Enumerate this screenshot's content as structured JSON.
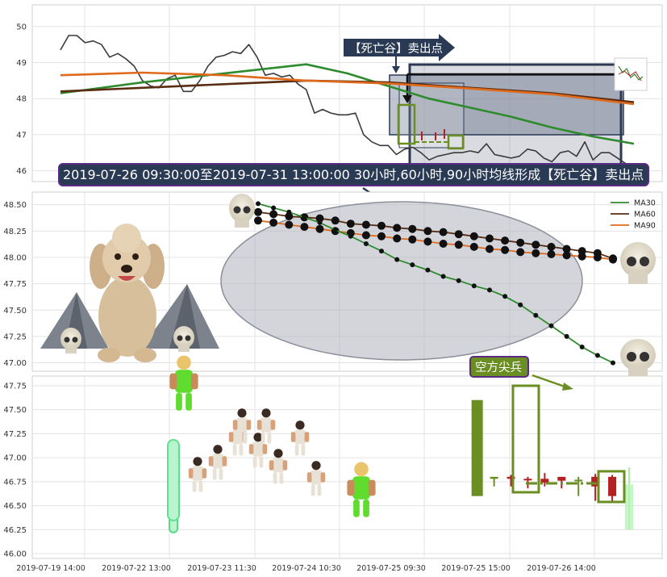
{
  "colors": {
    "price": "#3a3a3a",
    "ma30": "#2e8b2e",
    "ma60": "#5a2d12",
    "ma90": "#e06a1c",
    "candle_up": "#6b8e23",
    "candle_down": "#b22222",
    "callout_bg": "#2a3a55",
    "callout_border": "#5b2a86",
    "shade": "#8b93a5",
    "ellipse": "#b0b4bd"
  },
  "top_annotation": "【死亡谷】卖出点",
  "banner_text": "2019-07-26 09:30:00至2019-07-31 13:00:00 30小时,60小时,90小时均线形成【死亡谷】卖出点",
  "bottom_annotation": "空方尖兵",
  "legend": [
    {
      "key": "ma30",
      "label": "MA30"
    },
    {
      "key": "ma60",
      "label": "MA60"
    },
    {
      "key": "ma90",
      "label": "MA90"
    }
  ],
  "chart_data": [
    {
      "type": "line",
      "panel": "top",
      "ylim": [
        45.7,
        50.6
      ],
      "yticks": [
        "50",
        "49",
        "48",
        "47",
        "46"
      ],
      "ytick_values": [
        50,
        49,
        48,
        47,
        46
      ],
      "grid": true,
      "series": [
        {
          "key": "price",
          "x": [
            0,
            1,
            2,
            3,
            4,
            5,
            6,
            7,
            8,
            9,
            10,
            11,
            12,
            13,
            14,
            15,
            16,
            17,
            18,
            19,
            20,
            21,
            22,
            23,
            24,
            25,
            26,
            27,
            28,
            29,
            30,
            31,
            32,
            33,
            34,
            35,
            36,
            37,
            38,
            39,
            40,
            41,
            42,
            43,
            44,
            45,
            46,
            47,
            48,
            49,
            50,
            51,
            52,
            53,
            54,
            55,
            56,
            57,
            58,
            59,
            60,
            61,
            62,
            63,
            64,
            65,
            66,
            67,
            68,
            69,
            70
          ],
          "values": [
            49.35,
            49.75,
            49.75,
            49.55,
            49.6,
            49.5,
            49.15,
            49.25,
            49.1,
            48.9,
            48.5,
            48.35,
            48.3,
            48.55,
            48.65,
            48.2,
            48.2,
            48.5,
            48.9,
            49.15,
            49.2,
            49.3,
            49.25,
            49.5,
            49.15,
            48.65,
            48.7,
            48.6,
            48.65,
            48.4,
            48.25,
            47.6,
            47.7,
            47.6,
            47.55,
            47.55,
            47.6,
            47.0,
            46.8,
            46.7,
            46.7,
            46.45,
            46.6,
            46.65,
            46.5,
            46.3,
            46.4,
            46.45,
            46.5,
            46.5,
            46.55,
            46.5,
            46.75,
            46.45,
            46.4,
            46.35,
            46.4,
            46.6,
            46.55,
            46.35,
            46.25,
            46.5,
            46.55,
            46.4,
            46.8,
            46.3,
            46.5,
            46.5,
            46.35,
            46.2,
            46.15
          ]
        },
        {
          "key": "ma30",
          "x": [
            0,
            10,
            20,
            30,
            35,
            40,
            45,
            50,
            55,
            60,
            65,
            70
          ],
          "values": [
            48.15,
            48.45,
            48.7,
            48.95,
            48.7,
            48.35,
            48.0,
            47.75,
            47.5,
            47.2,
            46.95,
            46.75
          ]
        },
        {
          "key": "ma60",
          "x": [
            0,
            10,
            20,
            30,
            40,
            50,
            60,
            70
          ],
          "values": [
            48.2,
            48.3,
            48.4,
            48.5,
            48.45,
            48.3,
            48.15,
            47.9
          ]
        },
        {
          "key": "ma90",
          "x": [
            0,
            10,
            20,
            30,
            40,
            50,
            60,
            70
          ],
          "values": [
            48.65,
            48.72,
            48.65,
            48.5,
            48.42,
            48.28,
            48.12,
            47.85
          ]
        }
      ]
    },
    {
      "type": "line",
      "panel": "middle",
      "ylim": [
        46.92,
        48.62
      ],
      "yticks": [
        "48.50",
        "48.25",
        "48.00",
        "47.75",
        "47.50",
        "47.25",
        "47.00"
      ],
      "ytick_values": [
        48.5,
        48.25,
        48.0,
        47.75,
        47.5,
        47.25,
        47.0
      ],
      "grid": true,
      "legend_position": "top-right",
      "series": [
        {
          "key": "ma30",
          "name": "MA30",
          "x": [
            0,
            1,
            2,
            3,
            4,
            5,
            6,
            7,
            8,
            9,
            10,
            11,
            12,
            13,
            14,
            15,
            16,
            17,
            18,
            19,
            20,
            21,
            22,
            23
          ],
          "values": [
            48.51,
            48.47,
            48.43,
            48.38,
            48.33,
            48.26,
            48.2,
            48.13,
            48.06,
            47.98,
            47.93,
            47.88,
            47.82,
            47.78,
            47.73,
            47.69,
            47.63,
            47.55,
            47.45,
            47.35,
            47.25,
            47.15,
            47.07,
            47.0
          ]
        },
        {
          "key": "ma60",
          "name": "MA60",
          "x": [
            0,
            1,
            2,
            3,
            4,
            5,
            6,
            7,
            8,
            9,
            10,
            11,
            12,
            13,
            14,
            15,
            16,
            17,
            18,
            19,
            20,
            21,
            22,
            23
          ],
          "values": [
            48.43,
            48.41,
            48.39,
            48.38,
            48.37,
            48.35,
            48.32,
            48.31,
            48.3,
            48.28,
            48.27,
            48.25,
            48.24,
            48.22,
            48.2,
            48.18,
            48.16,
            48.14,
            48.12,
            48.1,
            48.08,
            48.06,
            48.04,
            47.99
          ]
        },
        {
          "key": "ma90",
          "name": "MA90",
          "x": [
            0,
            1,
            2,
            3,
            4,
            5,
            6,
            7,
            8,
            9,
            10,
            11,
            12,
            13,
            14,
            15,
            16,
            17,
            18,
            19,
            20,
            21,
            22,
            23
          ],
          "values": [
            48.35,
            48.33,
            48.31,
            48.29,
            48.27,
            48.25,
            48.23,
            48.21,
            48.2,
            48.18,
            48.17,
            48.15,
            48.13,
            48.12,
            48.1,
            48.08,
            48.07,
            48.05,
            48.04,
            48.03,
            48.02,
            48.01,
            48.0,
            47.98
          ]
        }
      ]
    },
    {
      "type": "bar",
      "panel": "bottom",
      "ylim": [
        45.95,
        47.85
      ],
      "yticks": [
        "47.75",
        "47.50",
        "47.25",
        "47.00",
        "46.75",
        "46.50",
        "46.25",
        "46.00"
      ],
      "ytick_values": [
        47.75,
        47.5,
        47.25,
        47.0,
        46.75,
        46.5,
        46.25,
        46.0
      ],
      "xticks": [
        "2019-07-19 14:00",
        "2019-07-22 13:00",
        "2019-07-23 11:30",
        "2019-07-24 10:30",
        "2019-07-25 09:30",
        "2019-07-25 15:00",
        "2019-07-26 14:00"
      ],
      "grid": true,
      "candles": [
        {
          "x": 0,
          "open": 47.06,
          "close": 46.22,
          "high": 47.06,
          "low": 46.22
        },
        {
          "x": 18,
          "open": 46.6,
          "close": 47.6,
          "high": 47.6,
          "low": 46.6
        },
        {
          "x": 19,
          "open": 46.78,
          "close": 46.8,
          "high": 46.8,
          "low": 46.7
        },
        {
          "x": 20,
          "open": 46.8,
          "close": 46.78,
          "high": 46.82,
          "low": 46.7
        },
        {
          "x": 21,
          "open": 46.78,
          "close": 46.77,
          "high": 46.8,
          "low": 46.68
        },
        {
          "x": 22,
          "open": 46.78,
          "close": 46.74,
          "high": 46.84,
          "low": 46.7
        },
        {
          "x": 23,
          "open": 46.8,
          "close": 46.76,
          "high": 46.8,
          "low": 46.68
        },
        {
          "x": 24,
          "open": 46.76,
          "close": 46.77,
          "high": 46.8,
          "low": 46.6
        },
        {
          "x": 25,
          "open": 46.8,
          "close": 46.7,
          "high": 46.83,
          "low": 46.55
        },
        {
          "x": 26,
          "open": 46.8,
          "close": 46.6,
          "high": 46.82,
          "low": 46.55
        },
        {
          "x": 27,
          "open": 46.72,
          "close": 46.25,
          "high": 46.9,
          "low": 46.25
        }
      ]
    }
  ]
}
